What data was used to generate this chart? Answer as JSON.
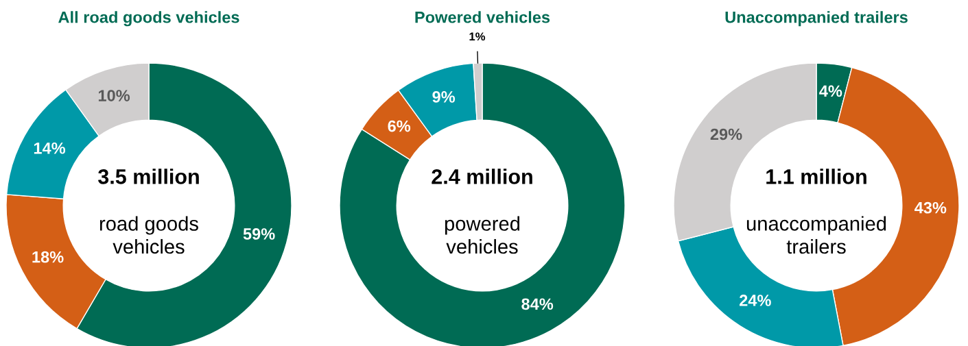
{
  "chart_data": [
    {
      "type": "donut",
      "title": "All road goods vehicles",
      "categories": [
        null,
        null,
        null,
        null
      ],
      "values": [
        59,
        18,
        14,
        10
      ],
      "value_labels": [
        "59%",
        "18%",
        "14%",
        "10%"
      ],
      "colors": [
        "#006b54",
        "#d45f16",
        "#0099a8",
        "#d0cece"
      ],
      "annotations": [
        "3.5 million",
        "road goods\nvehicles"
      ]
    },
    {
      "type": "donut",
      "title": "Powered vehicles",
      "categories": [
        null,
        null,
        null,
        null
      ],
      "values": [
        84,
        6,
        9,
        1
      ],
      "value_labels": [
        "84%",
        "6%",
        "9%",
        "1%"
      ],
      "colors": [
        "#006b54",
        "#d45f16",
        "#0099a8",
        "#d0cece"
      ],
      "annotations": [
        "2.4 million",
        "powered\nvehicles"
      ]
    },
    {
      "type": "donut",
      "title": "Unaccompanied trailers",
      "categories": [
        null,
        null,
        null,
        null
      ],
      "values": [
        4,
        43,
        24,
        29
      ],
      "value_labels": [
        "4%",
        "43%",
        "24%",
        "29%"
      ],
      "colors": [
        "#006b54",
        "#d45f16",
        "#0099a8",
        "#d0cece"
      ],
      "annotations": [
        "1.1 million",
        "unaccompanied\ntrailers"
      ]
    }
  ]
}
